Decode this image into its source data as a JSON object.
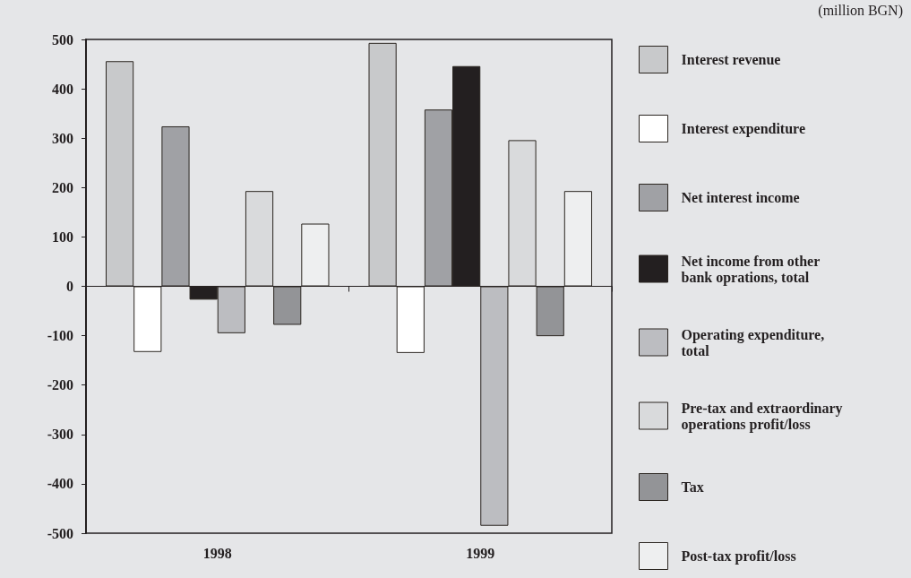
{
  "chart_data": {
    "type": "bar",
    "categories": [
      "1998",
      "1999"
    ],
    "series": [
      {
        "name": "Interest revenue",
        "color": "#c8c9cb",
        "values": [
          456,
          493
        ]
      },
      {
        "name": "Interest expenditure",
        "color": "#ffffff",
        "values": [
          -133,
          -135
        ]
      },
      {
        "name": "Net interest income",
        "color": "#a0a1a5",
        "values": [
          324,
          358
        ]
      },
      {
        "name": "Net income from other bank oprations, total",
        "color": "#231f20",
        "values": [
          -27,
          446
        ]
      },
      {
        "name": "Operating expenditure, total",
        "color": "#bcbdc1",
        "values": [
          -95,
          -485
        ]
      },
      {
        "name": "Pre-tax and extraordinary operations profit/loss",
        "color": "#d9dadc",
        "values": [
          193,
          296
        ]
      },
      {
        "name": "Tax",
        "color": "#939497",
        "values": [
          -78,
          -101
        ]
      },
      {
        "name": "Post-tax profit/loss",
        "color": "#eeeff0",
        "values": [
          127,
          193
        ]
      }
    ],
    "ylim": [
      -500,
      500
    ],
    "yticks": [
      -500,
      -400,
      -300,
      -200,
      -100,
      0,
      100,
      200,
      300,
      400,
      500
    ],
    "legend": "right",
    "annotations": [
      "(million BGN)"
    ]
  }
}
